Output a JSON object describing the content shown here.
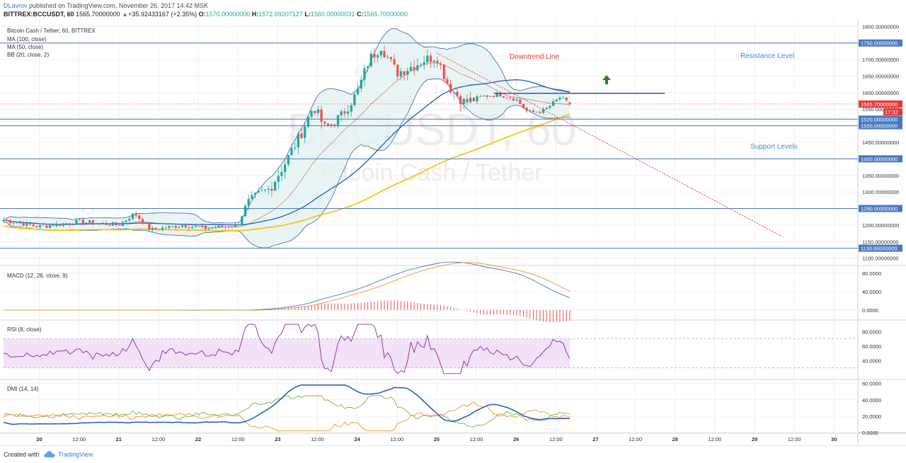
{
  "header": {
    "author": "DLavrov",
    "published_text": " published on TradingView.com, November 26, 2017 14:42 MSK",
    "symbol": "BITTREX:BCCUSDT, 60",
    "price": "1565.70000000",
    "change": "+35.92433167 (+2.35%)",
    "open_label": "O:",
    "open": "1570.00000000",
    "high_label": "H:",
    "high": "1572.69207127",
    "low_label": "L:",
    "low": "1560.00000031",
    "close_label": "C:",
    "close": "1565.70000000"
  },
  "legend": {
    "title": "Bitcoin Cash / Tether, 60, BITTREX",
    "ma100": "MA (100, close)",
    "ma50": "MA (50, close)",
    "bb": "BB (20, close, 2)",
    "macd": "MACD (12, 26, close, 9)",
    "rsi": "RSI (8, close)",
    "dmi": "DMI (14, 14)"
  },
  "watermark": {
    "symbol": "BCCUSDT, 60",
    "name": "Bitcoin Cash / Tether"
  },
  "annotations": {
    "downtrend": "Downtrend Line",
    "resistance": "Resistance Level",
    "support": "Support Levels"
  },
  "current_price_label": "1565.70000000",
  "countdown": "17:32",
  "footer": {
    "created_with": "Created with",
    "brand": "TradingView"
  },
  "colors": {
    "up": "#26a69a",
    "down": "#ef5350",
    "ma100": "#f5c518",
    "ma50": "#1e5bbd",
    "bb": "#4a6fbf",
    "bb_fill": "#e3f2f1",
    "level": "#4a78c4",
    "trend": "#e53935",
    "rsi_band": "#f3e1f7",
    "rsi_line": "#8e24aa",
    "annotation_blue": "#4a8ad4"
  },
  "chart_data": [
    {
      "type": "candlestick",
      "title": "Bitcoin Cash / Tether, 60, BITTREX",
      "y_range": [
        1080,
        1820
      ],
      "y_ticks": [
        {
          "value": 1800,
          "label": "1800.00000000"
        },
        {
          "value": 1750,
          "label": "1750.00000000"
        },
        {
          "value": 1700,
          "label": "1700.00000000"
        },
        {
          "value": 1650,
          "label": "1650.00000000"
        },
        {
          "value": 1600,
          "label": "1600.00000000"
        },
        {
          "value": 1550,
          "label": "1550.00000000"
        },
        {
          "value": 1520,
          "label": "1520.00000000"
        },
        {
          "value": 1500,
          "label": "1500.00000000"
        },
        {
          "value": 1450,
          "label": "1450.00000000"
        },
        {
          "value": 1400,
          "label": "1400.00000000"
        },
        {
          "value": 1350,
          "label": "1350.00000000"
        },
        {
          "value": 1300,
          "label": "1300.00000000"
        },
        {
          "value": 1250,
          "label": "1250.00000000"
        },
        {
          "value": 1200,
          "label": "1200.00000000"
        },
        {
          "value": 1150,
          "label": "1150.00000000"
        },
        {
          "value": 1130,
          "label": "1130.00000000"
        },
        {
          "value": 1100,
          "label": "1100.00000000"
        }
      ],
      "levels": [
        {
          "value": 1750,
          "label": "1750.00000000",
          "highlight": true
        },
        {
          "value": 1520,
          "label": "1520.00000000",
          "highlight": true
        },
        {
          "value": 1500,
          "label": "1500.00000000",
          "highlight": true
        },
        {
          "value": 1400,
          "label": "1400.00000000",
          "highlight": true
        },
        {
          "value": 1250,
          "label": "1250.00000000",
          "highlight": true
        },
        {
          "value": 1130,
          "label": "1130.00000000",
          "highlight": true
        }
      ],
      "resistance_segment": {
        "from_day": 25.72,
        "to_day": 27.87,
        "value": 1598
      },
      "downtrend_line": {
        "from_day": 25.0,
        "from_value": 1720,
        "to_day": 29.35,
        "to_value": 1165
      },
      "anchor_points": [
        {
          "day": 19.55,
          "close": 1215
        },
        {
          "day": 20.0,
          "close": 1195
        },
        {
          "day": 20.5,
          "close": 1210
        },
        {
          "day": 21.0,
          "close": 1200
        },
        {
          "day": 21.2,
          "close": 1235
        },
        {
          "day": 21.4,
          "close": 1185
        },
        {
          "day": 21.8,
          "close": 1200
        },
        {
          "day": 22.1,
          "close": 1190
        },
        {
          "day": 22.5,
          "close": 1200
        },
        {
          "day": 22.6,
          "close": 1260
        },
        {
          "day": 22.75,
          "close": 1290
        },
        {
          "day": 22.9,
          "close": 1310
        },
        {
          "day": 23.1,
          "close": 1390
        },
        {
          "day": 23.3,
          "close": 1480
        },
        {
          "day": 23.45,
          "close": 1560
        },
        {
          "day": 23.6,
          "close": 1490
        },
        {
          "day": 23.8,
          "close": 1530
        },
        {
          "day": 24.0,
          "close": 1600
        },
        {
          "day": 24.15,
          "close": 1700
        },
        {
          "day": 24.3,
          "close": 1740
        },
        {
          "day": 24.5,
          "close": 1660
        },
        {
          "day": 24.7,
          "close": 1680
        },
        {
          "day": 24.85,
          "close": 1700
        },
        {
          "day": 25.0,
          "close": 1710
        },
        {
          "day": 25.15,
          "close": 1620
        },
        {
          "day": 25.35,
          "close": 1570
        },
        {
          "day": 25.6,
          "close": 1590
        },
        {
          "day": 25.8,
          "close": 1595
        },
        {
          "day": 26.0,
          "close": 1580
        },
        {
          "day": 26.15,
          "close": 1540
        },
        {
          "day": 26.35,
          "close": 1545
        },
        {
          "day": 26.55,
          "close": 1585
        },
        {
          "day": 26.67,
          "close": 1565.7
        }
      ],
      "last": {
        "open": 1570,
        "high": 1572.69207127,
        "low": 1560.00000031,
        "close": 1565.7
      }
    },
    {
      "type": "line",
      "title": "MACD (12, 26, close, 9)",
      "y_ticks": [
        {
          "value": 80,
          "label": "80.0000"
        },
        {
          "value": 40,
          "label": "40.0000"
        },
        {
          "value": 0,
          "label": "0.0000"
        }
      ],
      "y_range": [
        -20,
        95
      ]
    },
    {
      "type": "line",
      "title": "RSI (8, close)",
      "y_ticks": [
        {
          "value": 80,
          "label": "80.0000"
        },
        {
          "value": 60,
          "label": "60.0000"
        },
        {
          "value": 40,
          "label": "40.0000"
        }
      ],
      "band": [
        30,
        70
      ],
      "y_range": [
        15,
        95
      ]
    },
    {
      "type": "line",
      "title": "DMI (14, 14)",
      "y_ticks": [
        {
          "value": 60,
          "label": "60.0000"
        },
        {
          "value": 40,
          "label": "40.0000"
        },
        {
          "value": 20,
          "label": "20.0000"
        },
        {
          "value": 0,
          "label": "0.0000"
        }
      ],
      "y_range": [
        0,
        64
      ]
    }
  ],
  "x_axis": {
    "range_days": [
      19.55,
      30.3
    ],
    "ticks": [
      {
        "day": 20.0,
        "label": "20"
      },
      {
        "day": 20.5,
        "label": "12:00"
      },
      {
        "day": 21.0,
        "label": "21"
      },
      {
        "day": 21.5,
        "label": "12:00"
      },
      {
        "day": 22.0,
        "label": "22"
      },
      {
        "day": 22.5,
        "label": "12:00"
      },
      {
        "day": 23.0,
        "label": "23"
      },
      {
        "day": 23.5,
        "label": "12:00"
      },
      {
        "day": 24.0,
        "label": "24"
      },
      {
        "day": 24.5,
        "label": "12:00"
      },
      {
        "day": 25.0,
        "label": "25"
      },
      {
        "day": 25.5,
        "label": "12:00"
      },
      {
        "day": 26.0,
        "label": "26"
      },
      {
        "day": 26.5,
        "label": "12:00"
      },
      {
        "day": 27.0,
        "label": "27"
      },
      {
        "day": 27.5,
        "label": "12:00"
      },
      {
        "day": 28.0,
        "label": "28"
      },
      {
        "day": 28.5,
        "label": "12:00"
      },
      {
        "day": 29.0,
        "label": "29"
      },
      {
        "day": 29.5,
        "label": "12:00"
      },
      {
        "day": 30.0,
        "label": "30"
      }
    ]
  }
}
